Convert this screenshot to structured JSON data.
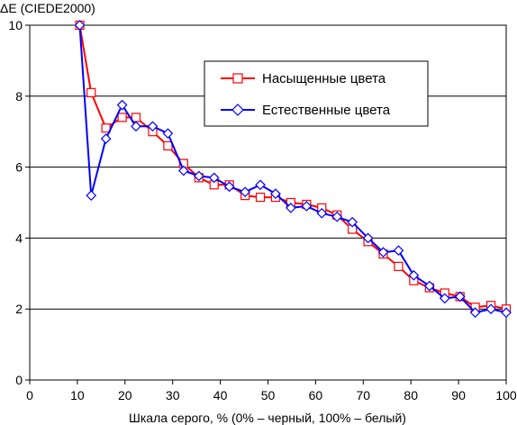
{
  "chart_data": {
    "type": "line",
    "title": "",
    "ylabel": "ΔE (CIEDE2000)",
    "xlabel": "Шкала серого, % (0% – черный, 100% – белый)",
    "xlim": [
      0,
      100
    ],
    "ylim": [
      0,
      10
    ],
    "xticks": [
      0,
      10,
      20,
      30,
      40,
      50,
      60,
      70,
      80,
      90,
      100
    ],
    "yticks": [
      0,
      2,
      4,
      6,
      8,
      10
    ],
    "grid": "horizontal",
    "legend": "upper-right",
    "series": [
      {
        "name": "Насыщенные цвета",
        "color": "#ff0000",
        "marker": "square",
        "x": [
          10.5,
          12.9,
          16,
          19.4,
          22.3,
          25.8,
          29,
          32.3,
          35.5,
          38.7,
          41.9,
          45.2,
          48.4,
          51.6,
          54.8,
          58.1,
          61.3,
          64.5,
          67.7,
          71,
          74.2,
          77.4,
          80.6,
          83.9,
          87.1,
          90.3,
          93.5,
          96.8,
          100
        ],
        "y": [
          10,
          8.1,
          7.1,
          7.4,
          7.4,
          7.0,
          6.6,
          6.1,
          5.7,
          5.5,
          5.5,
          5.2,
          5.15,
          5.15,
          5.0,
          4.95,
          4.85,
          4.65,
          4.25,
          3.9,
          3.55,
          3.2,
          2.8,
          2.6,
          2.45,
          2.35,
          2.05,
          2.1,
          2.0
        ]
      },
      {
        "name": "Естественные цвета",
        "color": "#0000ff",
        "marker": "diamond",
        "x": [
          10.5,
          12.9,
          16,
          19.4,
          22.3,
          25.8,
          29,
          32.3,
          35.5,
          38.7,
          41.9,
          45.2,
          48.4,
          51.6,
          54.8,
          58.1,
          61.3,
          64.5,
          67.7,
          71,
          74.2,
          77.4,
          80.6,
          83.9,
          87.1,
          90.3,
          93.5,
          96.8,
          100
        ],
        "y": [
          10,
          5.2,
          6.8,
          7.75,
          7.15,
          7.15,
          6.95,
          5.9,
          5.75,
          5.7,
          5.45,
          5.3,
          5.5,
          5.25,
          4.85,
          4.9,
          4.7,
          4.6,
          4.45,
          4.0,
          3.6,
          3.65,
          2.95,
          2.65,
          2.3,
          2.35,
          1.9,
          2.0,
          1.9
        ]
      }
    ]
  }
}
